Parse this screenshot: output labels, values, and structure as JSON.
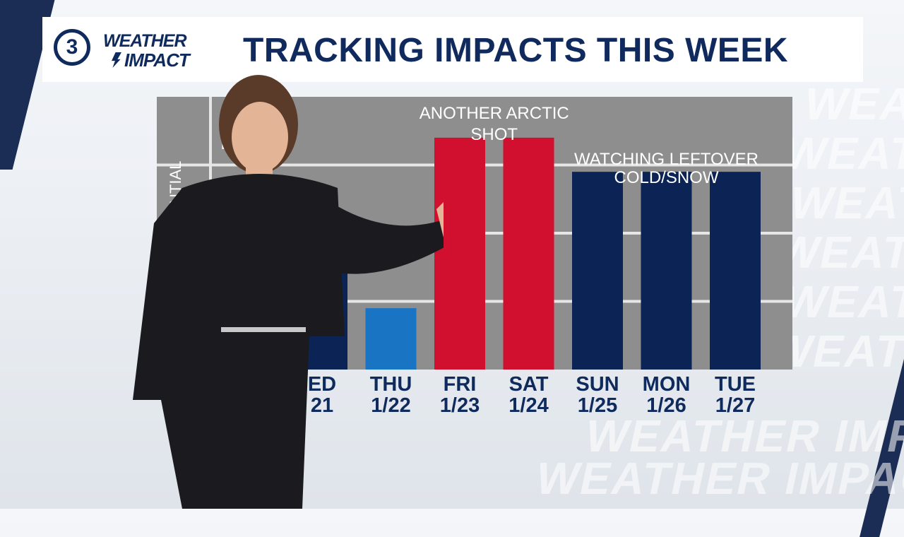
{
  "header": {
    "logo_number": "3",
    "logo_line1": "WEATHER",
    "logo_line2": "IMPACT",
    "title": "TRACKING IMPACTS THIS WEEK"
  },
  "axis_fragment": {
    "vertical_label": "NTIAL",
    "level_label_partial": "H"
  },
  "watermark_text": "WEATHER IMPACT",
  "chart_data": {
    "type": "bar",
    "title": "TRACKING IMPACTS THIS WEEK",
    "ylim": [
      0,
      4
    ],
    "grid": true,
    "categories": [
      {
        "day": "WED",
        "date": "1/21",
        "day_visible": "ED",
        "date_visible": "21"
      },
      {
        "day": "THU",
        "date": "1/22",
        "day_visible": "THU",
        "date_visible": "1/22"
      },
      {
        "day": "FRI",
        "date": "1/23",
        "day_visible": "FRI",
        "date_visible": "1/23"
      },
      {
        "day": "SAT",
        "date": "1/24",
        "day_visible": "SAT",
        "date_visible": "1/24"
      },
      {
        "day": "SUN",
        "date": "1/25",
        "day_visible": "SUN",
        "date_visible": "1/25"
      },
      {
        "day": "MON",
        "date": "1/26",
        "day_visible": "MON",
        "date_visible": "1/26"
      },
      {
        "day": "TUE",
        "date": "1/27",
        "day_visible": "TUE",
        "date_visible": "1/27"
      }
    ],
    "values": [
      2.1,
      0.9,
      3.4,
      3.4,
      2.9,
      2.9,
      2.9
    ],
    "bar_colors": [
      "#0b2455",
      "#1a74c4",
      "#d0102e",
      "#d0102e",
      "#0b2455",
      "#0b2455",
      "#0b2455"
    ],
    "annotations": [
      {
        "text_lines": [
          "ANOTHER ARCTIC",
          "SHOT"
        ],
        "category_index": 2.5
      },
      {
        "text_lines": [
          "WATCHING LEFTOVER",
          "COLD/SNOW"
        ],
        "category_index": 5
      }
    ],
    "colors": {
      "panel": "#8e8e8e",
      "gridline": "#e6e6e6",
      "label": "#0f2a5c",
      "annotation_text": "#ffffff"
    }
  }
}
